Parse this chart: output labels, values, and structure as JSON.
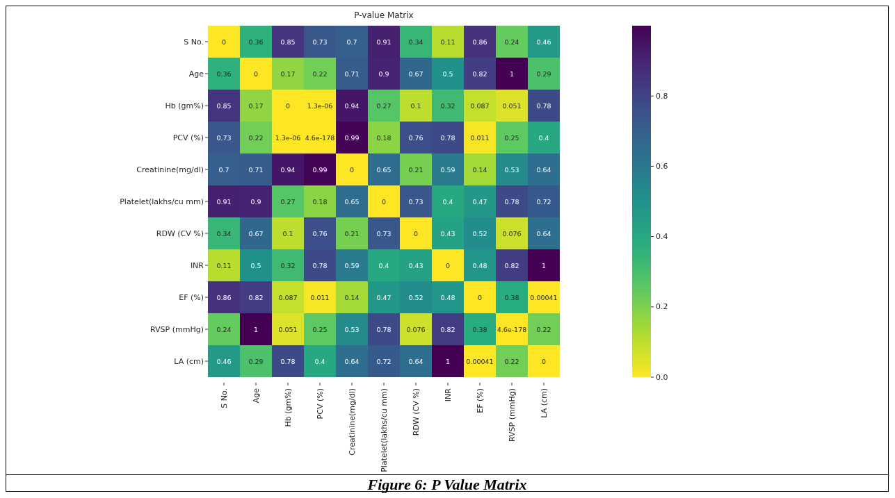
{
  "chart_data": {
    "type": "heatmap",
    "title": "P-value Matrix",
    "categories": [
      "S No.",
      "Age",
      "Hb (gm%)",
      "PCV (%)",
      "Creatinine(mg/dl)",
      "Platelet(lakhs/cu mm)",
      "RDW (CV %)",
      "INR",
      "EF (%)",
      "RVSP (mmHg)",
      "LA (cm)"
    ],
    "y_categories": [
      "S No.",
      "Age",
      "Hb (gm%)",
      "PCV (%)",
      "Creatinine(mg/dl)",
      "Platelet(lakhs/cu mm)",
      "RDW (CV %)",
      "INR",
      "EF (%)",
      "RVSP (mmHg)",
      "LA (cm)"
    ],
    "cells": [
      [
        0,
        0.36,
        0.85,
        0.73,
        0.7,
        0.91,
        0.34,
        0.11,
        0.86,
        0.24,
        0.46
      ],
      [
        0.36,
        0,
        0.17,
        0.22,
        0.71,
        0.9,
        0.67,
        0.5,
        0.82,
        1,
        0.29
      ],
      [
        0.85,
        0.17,
        0,
        1.3e-06,
        0.94,
        0.27,
        0.1,
        0.32,
        0.087,
        0.051,
        0.78
      ],
      [
        0.73,
        0.22,
        1.3e-06,
        4.6e-178,
        0.99,
        0.18,
        0.76,
        0.78,
        0.011,
        0.25,
        0.4
      ],
      [
        0.7,
        0.71,
        0.94,
        0.99,
        0,
        0.65,
        0.21,
        0.59,
        0.14,
        0.53,
        0.64
      ],
      [
        0.91,
        0.9,
        0.27,
        0.18,
        0.65,
        0,
        0.73,
        0.4,
        0.47,
        0.78,
        0.72
      ],
      [
        0.34,
        0.67,
        0.1,
        0.76,
        0.21,
        0.73,
        0,
        0.43,
        0.52,
        0.076,
        0.64
      ],
      [
        0.11,
        0.5,
        0.32,
        0.78,
        0.59,
        0.4,
        0.43,
        0,
        0.48,
        0.82,
        1
      ],
      [
        0.86,
        0.82,
        0.087,
        0.011,
        0.14,
        0.47,
        0.52,
        0.48,
        0,
        0.38,
        0.00041
      ],
      [
        0.24,
        1,
        0.051,
        0.25,
        0.53,
        0.78,
        0.076,
        0.82,
        0.38,
        4.6e-178,
        0.22
      ],
      [
        0.46,
        0.29,
        0.78,
        0.4,
        0.64,
        0.72,
        0.64,
        1,
        0.00041,
        0.22,
        0
      ]
    ],
    "cell_labels": [
      [
        "0",
        "0.36",
        "0.85",
        "0.73",
        "0.7",
        "0.91",
        "0.34",
        "0.11",
        "0.86",
        "0.24",
        "0.46"
      ],
      [
        "0.36",
        "0",
        "0.17",
        "0.22",
        "0.71",
        "0.9",
        "0.67",
        "0.5",
        "0.82",
        "1",
        "0.29"
      ],
      [
        "0.85",
        "0.17",
        "0",
        "1.3e-06",
        "0.94",
        "0.27",
        "0.1",
        "0.32",
        "0.087",
        "0.051",
        "0.78"
      ],
      [
        "0.73",
        "0.22",
        "1.3e-06",
        "4.6e-178",
        "0.99",
        "0.18",
        "0.76",
        "0.78",
        "0.011",
        "0.25",
        "0.4"
      ],
      [
        "0.7",
        "0.71",
        "0.94",
        "0.99",
        "0",
        "0.65",
        "0.21",
        "0.59",
        "0.14",
        "0.53",
        "0.64"
      ],
      [
        "0.91",
        "0.9",
        "0.27",
        "0.18",
        "0.65",
        "0",
        "0.73",
        "0.4",
        "0.47",
        "0.78",
        "0.72"
      ],
      [
        "0.34",
        "0.67",
        "0.1",
        "0.76",
        "0.21",
        "0.73",
        "0",
        "0.43",
        "0.52",
        "0.076",
        "0.64"
      ],
      [
        "0.11",
        "0.5",
        "0.32",
        "0.78",
        "0.59",
        "0.4",
        "0.43",
        "0",
        "0.48",
        "0.82",
        "1"
      ],
      [
        "0.86",
        "0.82",
        "0.087",
        "0.011",
        "0.14",
        "0.47",
        "0.52",
        "0.48",
        "0",
        "0.38",
        "0.00041"
      ],
      [
        "0.24",
        "1",
        "0.051",
        "0.25",
        "0.53",
        "0.78",
        "0.076",
        "0.82",
        "0.38",
        "4.6e-178",
        "0.22"
      ],
      [
        "0.46",
        "0.29",
        "0.78",
        "0.4",
        "0.64",
        "0.72",
        "0.64",
        "1",
        "0.00041",
        "0.22",
        "0"
      ]
    ],
    "clim": [
      0,
      1
    ],
    "cticks": [
      {
        "value": 0,
        "label": "0.0"
      },
      {
        "value": 0.2,
        "label": "0.2"
      },
      {
        "value": 0.4,
        "label": "0.4"
      },
      {
        "value": 0.6,
        "label": "0.6"
      },
      {
        "value": 0.8,
        "label": "0.8"
      }
    ],
    "annotations": [
      "Figure 6: P Value Matrix"
    ]
  }
}
